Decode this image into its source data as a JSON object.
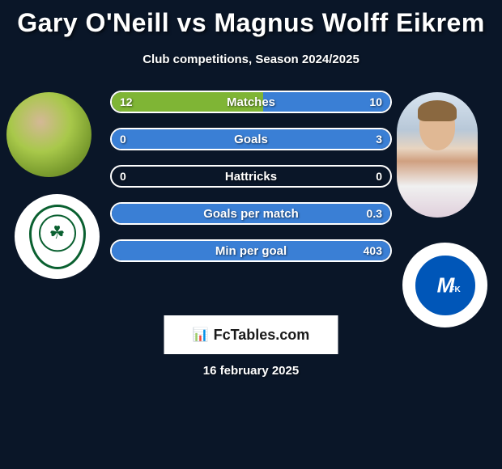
{
  "title": "Gary O'Neill vs Magnus Wolff Eikrem",
  "subtitle": "Club competitions, Season 2024/2025",
  "colors": {
    "background": "#0a1628",
    "left_fill": "#7fb535",
    "right_fill": "#3a7fd5",
    "bar_border": "#ffffff",
    "text": "#ffffff"
  },
  "bars": [
    {
      "label": "Matches",
      "left_val": "12",
      "right_val": "10",
      "left_pct": 54.5,
      "right_pct": 45.5
    },
    {
      "label": "Goals",
      "left_val": "0",
      "right_val": "3",
      "left_pct": 0,
      "right_pct": 100
    },
    {
      "label": "Hattricks",
      "left_val": "0",
      "right_val": "0",
      "left_pct": 0,
      "right_pct": 0
    },
    {
      "label": "Goals per match",
      "left_val": "",
      "right_val": "0.3",
      "left_pct": 0,
      "right_pct": 100
    },
    {
      "label": "Min per goal",
      "left_val": "",
      "right_val": "403",
      "left_pct": 0,
      "right_pct": 100
    }
  ],
  "footer": {
    "brand": "FcTables.com",
    "date": "16 february 2025"
  }
}
